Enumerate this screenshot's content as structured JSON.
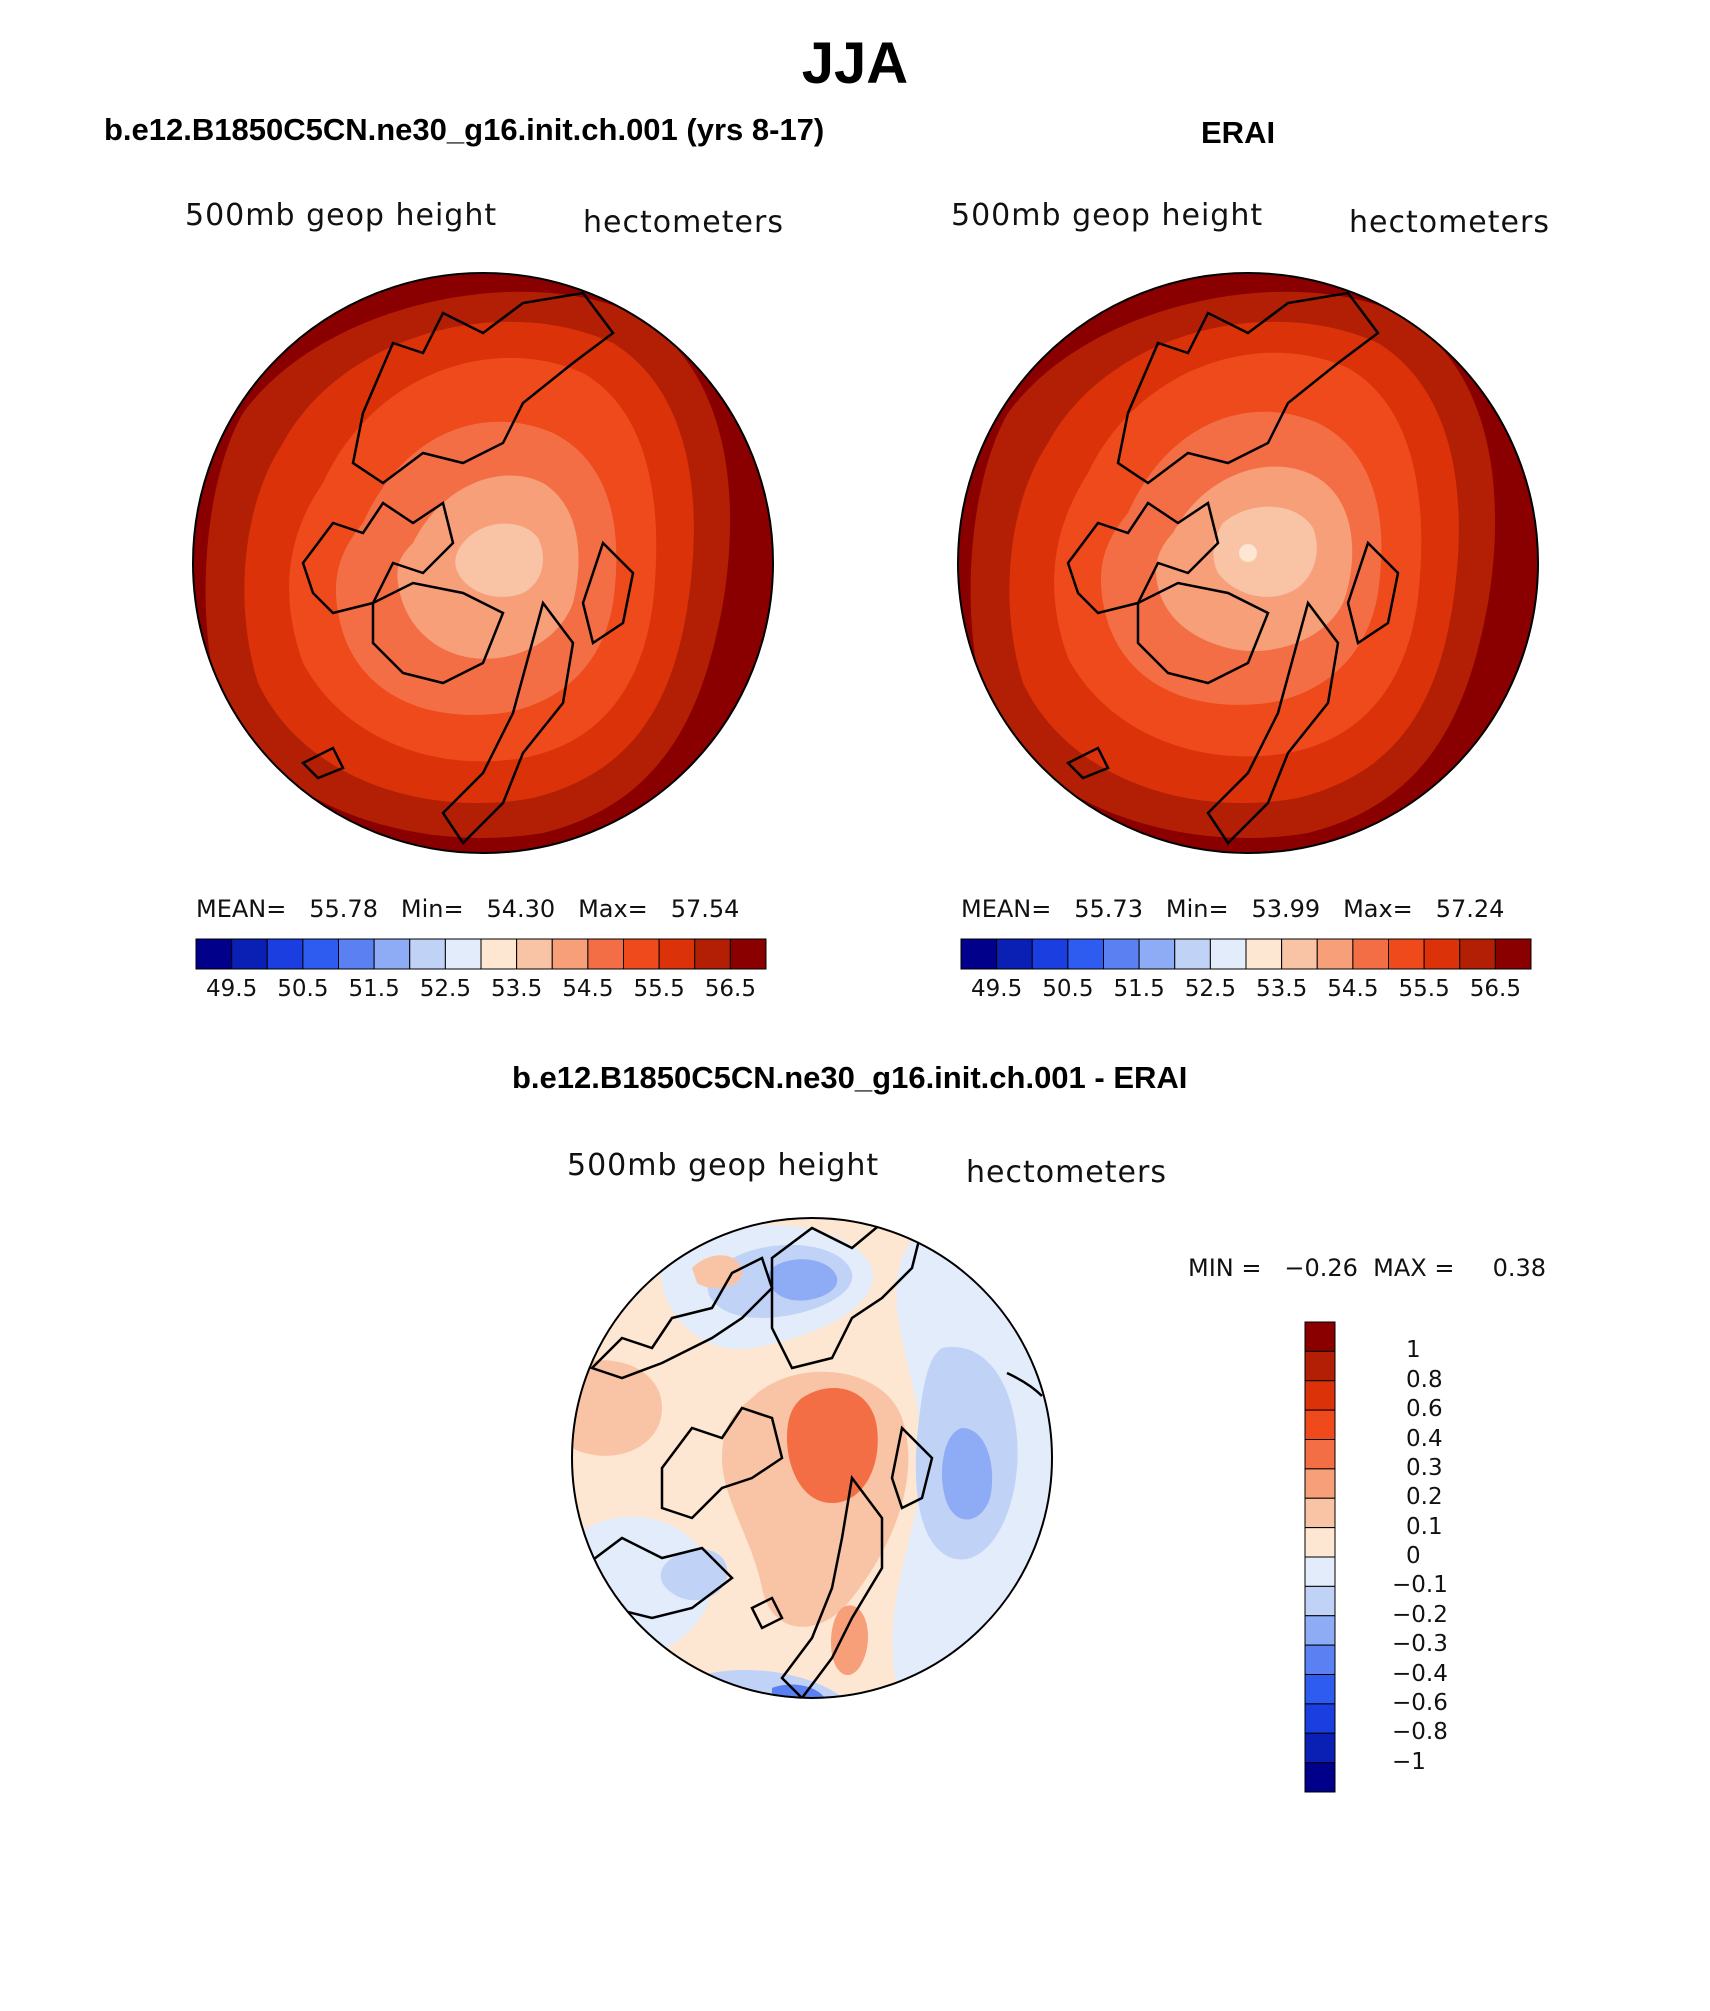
{
  "title": "JJA",
  "panels": [
    {
      "title": "b.e12.B1850C5CN.ne30_g16.init.ch.001 (yrs 8-17)",
      "left_label": "500mb  geop  height",
      "right_label": "hectometers",
      "stats": {
        "mean_label": "MEAN=",
        "mean": "55.78",
        "min_label": "Min=",
        "min": "54.30",
        "max_label": "Max=",
        "max": "57.54"
      }
    },
    {
      "title": "ERAI",
      "left_label": "500mb  geop  height",
      "right_label": "hectometers",
      "stats": {
        "mean_label": "MEAN=",
        "mean": "55.73",
        "min_label": "Min=",
        "min": "53.99",
        "max_label": "Max=",
        "max": "57.24"
      }
    },
    {
      "title": "b.e12.B1850C5CN.ne30_g16.init.ch.001 - ERAI",
      "left_label": "500mb  geop  height",
      "right_label": "hectometers",
      "stats_text": "MIN =   −0.26  MAX =     0.38"
    }
  ],
  "colorbar_main": {
    "colors": [
      "#00008b",
      "#0a1fb4",
      "#1a3ee0",
      "#2f5cf0",
      "#5a80f2",
      "#8eabf5",
      "#c0d3f7",
      "#e2ecfa",
      "#fde6d2",
      "#f9c3a5",
      "#f79f78",
      "#f46e45",
      "#ee4a1c",
      "#db3209",
      "#b21f04",
      "#8a0000"
    ],
    "tick_labels": [
      "49.5",
      "50.5",
      "51.5",
      "52.5",
      "53.5",
      "54.5",
      "55.5",
      "56.5"
    ]
  },
  "colorbar_diff": {
    "colors": [
      "#00008b",
      "#0a1fb4",
      "#1a3ee0",
      "#2f5cf0",
      "#5a80f2",
      "#8eabf5",
      "#c0d3f7",
      "#e2ecfa",
      "#fde6d2",
      "#f9c3a5",
      "#f79f78",
      "#f46e45",
      "#ee4a1c",
      "#db3209",
      "#b21f04",
      "#8a0000"
    ],
    "tick_labels": [
      "1",
      "0.8",
      "0.6",
      "0.4",
      "0.3",
      "0.2",
      "0.1",
      "0",
      "−0.1",
      "−0.2",
      "−0.3",
      "−0.4",
      "−0.6",
      "−0.8",
      "−1"
    ]
  }
}
